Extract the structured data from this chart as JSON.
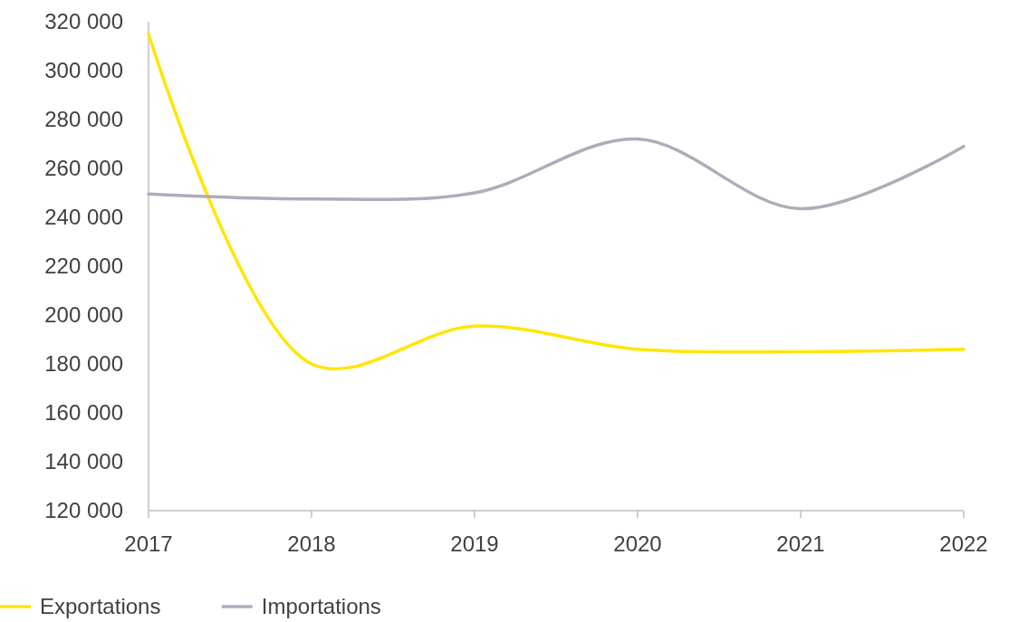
{
  "chart_data": {
    "type": "line",
    "x": [
      2017,
      2018,
      2019,
      2020,
      2021,
      2022
    ],
    "xlim": [
      2017,
      2022
    ],
    "xticks": [
      2017,
      2018,
      2019,
      2020,
      2021,
      2022
    ],
    "ylim": [
      120000,
      320000
    ],
    "yticks": [
      {
        "value": 120000,
        "label": "120 000"
      },
      {
        "value": 140000,
        "label": "140 000"
      },
      {
        "value": 160000,
        "label": "160 000"
      },
      {
        "value": 180000,
        "label": "180 000"
      },
      {
        "value": 200000,
        "label": "200 000"
      },
      {
        "value": 220000,
        "label": "220 000"
      },
      {
        "value": 240000,
        "label": "240 000"
      },
      {
        "value": 260000,
        "label": "260 000"
      },
      {
        "value": 280000,
        "label": "280 000"
      },
      {
        "value": 300000,
        "label": "300 000"
      },
      {
        "value": 320000,
        "label": "320 000"
      }
    ],
    "grid": false,
    "legend": "bottom left",
    "marker": "none",
    "line_style": "solid",
    "series": [
      {
        "name": "Exportations",
        "color": "#ffe600",
        "values": [
          315000,
          180000,
          195500,
          186000,
          185000,
          186000
        ]
      },
      {
        "name": "Importations",
        "color": "#aeacba",
        "values": [
          249500,
          247500,
          250000,
          272000,
          243500,
          269000
        ]
      }
    ]
  }
}
